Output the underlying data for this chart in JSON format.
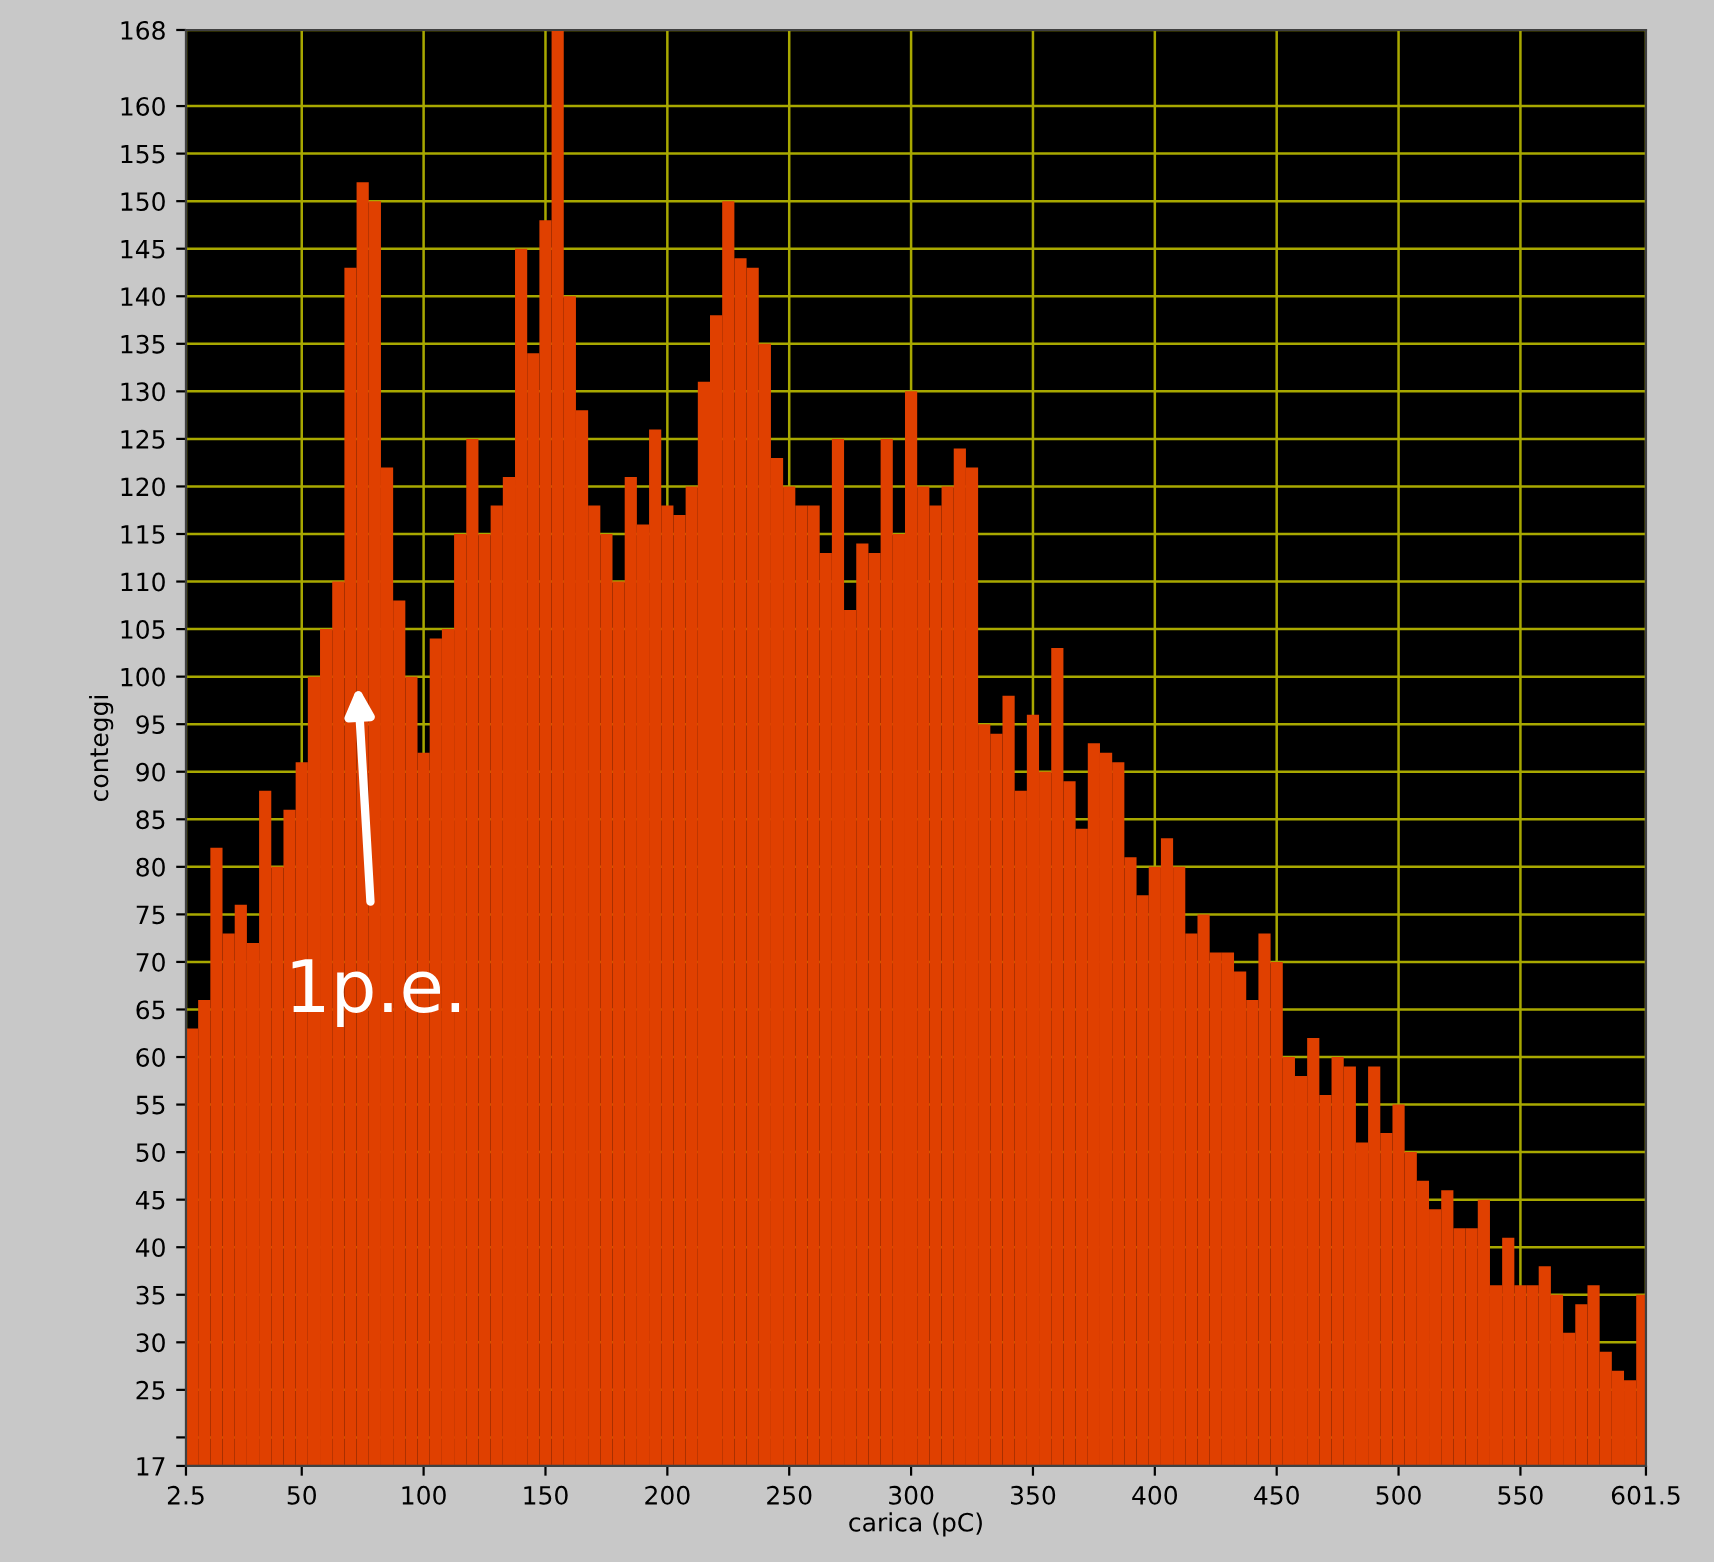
{
  "chart_data": {
    "type": "histogram",
    "xlabel": "carica (pC)",
    "ylabel": "conteggi",
    "annotations": [
      {
        "text": "1p.e.",
        "x": 73,
        "y": 99
      }
    ],
    "bins": [
      2.5,
      7.5,
      12.5,
      17.5,
      22.5,
      27.5,
      32.5,
      37.5,
      42.5,
      47.5,
      52.5,
      57.5,
      62.5,
      67.5,
      72.5,
      77.5,
      82.5,
      87.5,
      92.5,
      97.5,
      102.5,
      107.5,
      112.5,
      117.5,
      122.5,
      127.5,
      132.5,
      137.5,
      142.5,
      147.5,
      152.5,
      157.5,
      162.5,
      167.5,
      172.5,
      177.5,
      182.5,
      187.5,
      192.5,
      197.5,
      202.5,
      207.5,
      212.5,
      217.5,
      222.5,
      227.5,
      232.5,
      237.5,
      242.5,
      247.5,
      252.5,
      257.5,
      262.5,
      267.5,
      272.5,
      277.5,
      282.5,
      287.5,
      292.5,
      297.5,
      302.5,
      307.5,
      312.5,
      317.5,
      322.5,
      327.5,
      332.5,
      337.5,
      342.5,
      347.5,
      352.5,
      357.5,
      362.5,
      367.5,
      372.5,
      377.5,
      382.5,
      387.5,
      392.5,
      397.5,
      402.5,
      407.5,
      412.5,
      417.5,
      422.5,
      427.5,
      432.5,
      437.5,
      442.5,
      447.5,
      452.5,
      457.5,
      462.5,
      467.5,
      472.5,
      477.5,
      482.5,
      487.5,
      492.5,
      497.5,
      502.5,
      507.5,
      512.5,
      517.5,
      522.5,
      527.5,
      532.5,
      537.5,
      542.5,
      547.5,
      552.5,
      557.5,
      562.5,
      567.5,
      572.5,
      577.5,
      582.5,
      587.5,
      592.5,
      597.5,
      601.5
    ],
    "values": [
      63,
      66,
      82,
      73,
      76,
      72,
      88,
      80,
      86,
      91,
      100,
      105,
      110,
      143,
      152,
      150,
      122,
      108,
      100,
      92,
      104,
      105,
      115,
      125,
      115,
      118,
      121,
      145,
      134,
      148,
      168,
      140,
      128,
      118,
      115,
      110,
      121,
      116,
      126,
      118,
      117,
      120,
      131,
      138,
      150,
      144,
      143,
      135,
      123,
      120,
      118,
      118,
      113,
      125,
      107,
      114,
      113,
      125,
      115,
      130,
      120,
      118,
      120,
      124,
      122,
      95,
      94,
      98,
      88,
      96,
      90,
      103,
      89,
      84,
      93,
      92,
      91,
      81,
      77,
      80,
      83,
      80,
      73,
      75,
      71,
      71,
      69,
      66,
      73,
      70,
      60,
      58,
      62,
      56,
      60,
      59,
      51,
      59,
      52,
      55,
      50,
      47,
      44,
      46,
      42,
      42,
      45,
      36,
      41,
      36,
      36,
      38,
      35,
      31,
      34,
      36,
      29,
      27,
      26,
      35
    ],
    "color": "#e04000",
    "xlim": [
      2.5,
      601.5
    ],
    "ylim": [
      17,
      168
    ],
    "xticks": [
      2.5,
      50,
      100,
      150,
      200,
      250,
      300,
      350,
      400,
      450,
      500,
      550,
      601.5
    ],
    "yticks": [
      17,
      {
        "value": 20,
        "label": null
      },
      25,
      30,
      35,
      40,
      45,
      50,
      55,
      60,
      65,
      70,
      75,
      80,
      85,
      90,
      95,
      100,
      105,
      110,
      115,
      120,
      125,
      130,
      135,
      140,
      145,
      150,
      155,
      160,
      168
    ],
    "grid": true
  }
}
